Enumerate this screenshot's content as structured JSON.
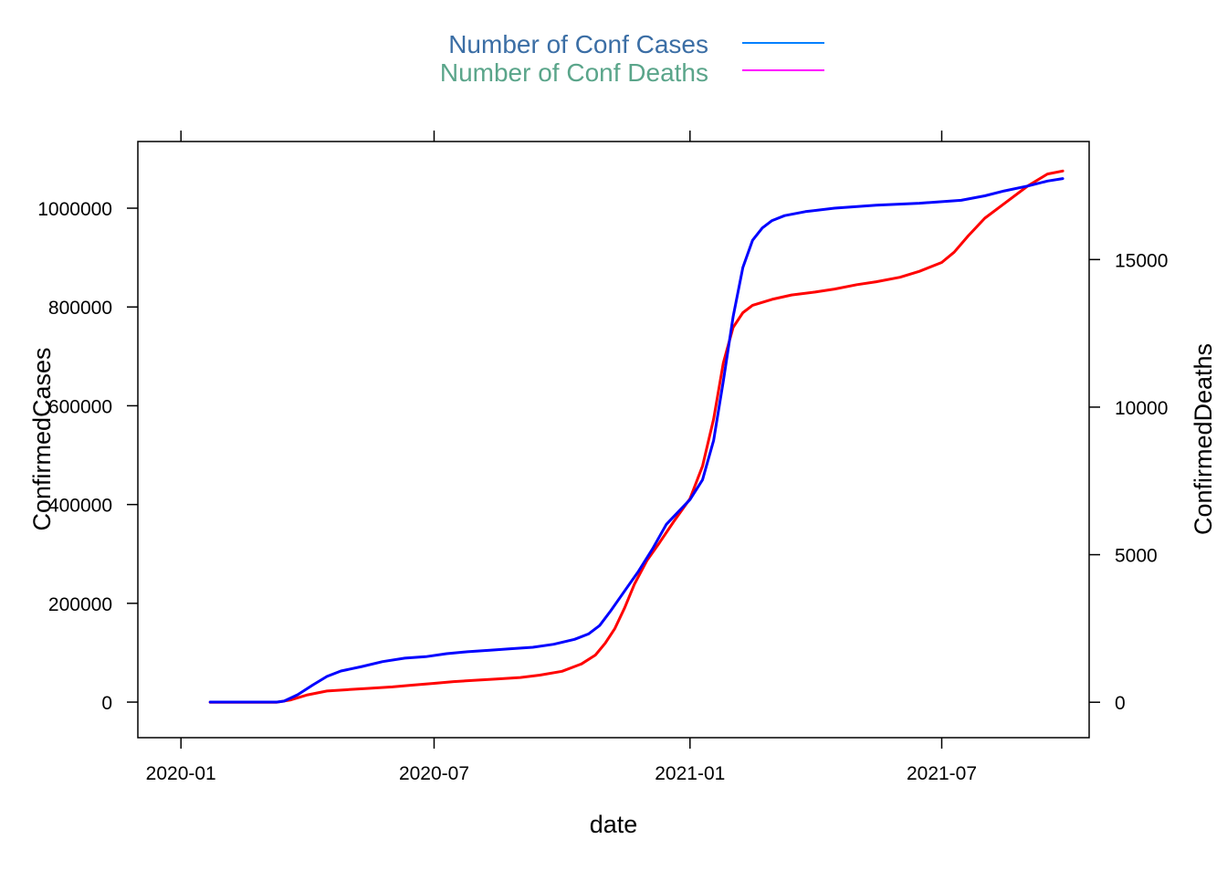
{
  "chart_data": {
    "type": "line",
    "xlabel": "date",
    "ylabel_left": "ConfirmedCases",
    "ylabel_right": "ConfirmedDeaths",
    "x_range": [
      "2019-12-01",
      "2021-10-15"
    ],
    "x_ticks": [
      {
        "date": "2020-01-01",
        "label": "2020-01"
      },
      {
        "date": "2020-07-01",
        "label": "2020-07"
      },
      {
        "date": "2021-01-01",
        "label": "2021-01"
      },
      {
        "date": "2021-07-01",
        "label": "2021-07"
      }
    ],
    "y_left": {
      "ylim": [
        -72000,
        1135000
      ],
      "ticks": [
        0,
        200000,
        400000,
        600000,
        800000,
        1000000
      ],
      "tick_labels": [
        "0",
        "200000",
        "400000",
        "600000",
        "800000",
        "1000000"
      ]
    },
    "y_right": {
      "ylim": [
        -1200,
        19000
      ],
      "ticks": [
        0,
        5000,
        10000,
        15000
      ],
      "tick_labels": [
        "0",
        "5000",
        "10000",
        "15000"
      ]
    },
    "legend": {
      "position": "top-center",
      "entries": [
        {
          "label": "Number of Conf Cases",
          "text_color": "#3b6ea5",
          "line_color": "#0080ff"
        },
        {
          "label": "Number of Conf Deaths",
          "text_color": "#5aa58a",
          "line_color": "#ff00ff"
        }
      ]
    },
    "series": [
      {
        "name": "ConfirmedDeaths",
        "axis": "right",
        "color": "#ff0000",
        "points": [
          [
            "2020-01-22",
            0
          ],
          [
            "2020-02-15",
            0
          ],
          [
            "2020-03-10",
            0
          ],
          [
            "2020-03-20",
            80
          ],
          [
            "2020-04-01",
            250
          ],
          [
            "2020-04-15",
            380
          ],
          [
            "2020-05-01",
            430
          ],
          [
            "2020-05-15",
            470
          ],
          [
            "2020-06-01",
            520
          ],
          [
            "2020-06-15",
            580
          ],
          [
            "2020-07-01",
            640
          ],
          [
            "2020-07-15",
            700
          ],
          [
            "2020-08-01",
            750
          ],
          [
            "2020-08-15",
            790
          ],
          [
            "2020-09-01",
            840
          ],
          [
            "2020-09-15",
            920
          ],
          [
            "2020-10-01",
            1050
          ],
          [
            "2020-10-15",
            1300
          ],
          [
            "2020-10-25",
            1600
          ],
          [
            "2020-11-01",
            2000
          ],
          [
            "2020-11-08",
            2500
          ],
          [
            "2020-11-15",
            3200
          ],
          [
            "2020-11-22",
            4000
          ],
          [
            "2020-12-01",
            4800
          ],
          [
            "2020-12-10",
            5400
          ],
          [
            "2020-12-20",
            6100
          ],
          [
            "2021-01-01",
            6900
          ],
          [
            "2021-01-10",
            8000
          ],
          [
            "2021-01-18",
            9600
          ],
          [
            "2021-01-25",
            11500
          ],
          [
            "2021-02-01",
            12700
          ],
          [
            "2021-02-08",
            13200
          ],
          [
            "2021-02-15",
            13450
          ],
          [
            "2021-03-01",
            13650
          ],
          [
            "2021-03-15",
            13800
          ],
          [
            "2021-04-01",
            13900
          ],
          [
            "2021-04-15",
            14000
          ],
          [
            "2021-05-01",
            14150
          ],
          [
            "2021-05-15",
            14250
          ],
          [
            "2021-06-01",
            14400
          ],
          [
            "2021-06-15",
            14600
          ],
          [
            "2021-07-01",
            14900
          ],
          [
            "2021-07-10",
            15250
          ],
          [
            "2021-07-20",
            15800
          ],
          [
            "2021-08-01",
            16400
          ],
          [
            "2021-08-15",
            16900
          ],
          [
            "2021-09-01",
            17500
          ],
          [
            "2021-09-15",
            17900
          ],
          [
            "2021-09-26",
            18000
          ]
        ]
      },
      {
        "name": "ConfirmedCases",
        "axis": "left",
        "color": "#0000ff",
        "points": [
          [
            "2020-01-22",
            0
          ],
          [
            "2020-02-15",
            0
          ],
          [
            "2020-03-10",
            0
          ],
          [
            "2020-03-15",
            2000
          ],
          [
            "2020-03-25",
            15000
          ],
          [
            "2020-04-05",
            35000
          ],
          [
            "2020-04-15",
            52000
          ],
          [
            "2020-04-25",
            63000
          ],
          [
            "2020-05-10",
            72000
          ],
          [
            "2020-05-25",
            82000
          ],
          [
            "2020-06-10",
            89000
          ],
          [
            "2020-06-25",
            92000
          ],
          [
            "2020-07-10",
            98000
          ],
          [
            "2020-07-25",
            102000
          ],
          [
            "2020-08-10",
            105000
          ],
          [
            "2020-08-25",
            108000
          ],
          [
            "2020-09-10",
            111000
          ],
          [
            "2020-09-25",
            117000
          ],
          [
            "2020-10-10",
            127000
          ],
          [
            "2020-10-20",
            138000
          ],
          [
            "2020-10-28",
            155000
          ],
          [
            "2020-11-05",
            185000
          ],
          [
            "2020-11-15",
            225000
          ],
          [
            "2020-11-25",
            265000
          ],
          [
            "2020-12-05",
            310000
          ],
          [
            "2020-12-15",
            360000
          ],
          [
            "2021-01-01",
            410000
          ],
          [
            "2021-01-10",
            450000
          ],
          [
            "2021-01-18",
            530000
          ],
          [
            "2021-01-25",
            650000
          ],
          [
            "2021-02-01",
            780000
          ],
          [
            "2021-02-08",
            880000
          ],
          [
            "2021-02-15",
            935000
          ],
          [
            "2021-02-22",
            960000
          ],
          [
            "2021-03-01",
            975000
          ],
          [
            "2021-03-10",
            985000
          ],
          [
            "2021-03-25",
            993000
          ],
          [
            "2021-04-15",
            1000000
          ],
          [
            "2021-05-15",
            1006000
          ],
          [
            "2021-06-15",
            1010000
          ],
          [
            "2021-07-15",
            1016000
          ],
          [
            "2021-08-01",
            1025000
          ],
          [
            "2021-08-15",
            1035000
          ],
          [
            "2021-09-01",
            1045000
          ],
          [
            "2021-09-15",
            1055000
          ],
          [
            "2021-09-26",
            1060000
          ]
        ]
      }
    ]
  }
}
